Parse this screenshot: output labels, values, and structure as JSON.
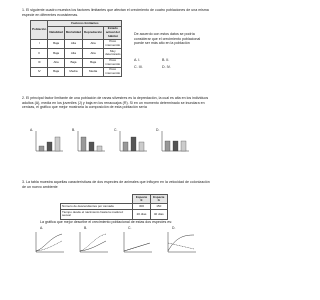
{
  "q1": {
    "text": "1. El siguiente cuadro muestra los factores limitantes que afectan el crecimiento de cuatro poblaciones de una misma especie en diferentes ecosistemas.",
    "table": {
      "group": "Factores limitantes",
      "header": [
        "Población",
        "Natalidad",
        "Mortalidad",
        "Depredación",
        "Estado actual del hábitat"
      ],
      "rows": [
        [
          "I",
          "Baja",
          "Alta",
          "Alta",
          "Poco intervenido"
        ],
        [
          "II",
          "Baja",
          "Alta",
          "Alta",
          "Muy deteriorado"
        ],
        [
          "III",
          "Alta",
          "Baja",
          "Baja",
          "Poco intervenido"
        ],
        [
          "IV",
          "Baja",
          "Media",
          "Media",
          "Poco intervenido"
        ]
      ]
    },
    "question": "De acuerdo con estos datos se podría considerar que el crecimiento poblacional puede ser más alto en la población",
    "options": [
      "A. I.",
      "B. II.",
      "C. III.",
      "D. IV."
    ]
  },
  "q2": {
    "text": "2. El principal factor limitante de una población de ranas silvestres es la depredación, la cual es alta en los individuos adultos (A), media en los juveniles (J) y baja en los renacuajos (R). Si en un momento determinado se inundara en cenizas, el gráfico que mejor mostraría la composición de esta población sería",
    "charts": [
      "A.",
      "B.",
      "C.",
      "D."
    ]
  },
  "q3": {
    "text": "3. La tabla muestra aquellas características de dos especies de animales que influyen en la velocidad de colonización de un nuevo ambiente",
    "table": {
      "header": [
        "Especie E",
        "Especie G"
      ],
      "rows": [
        [
          "Número de descendientes por camada",
          "300",
          "150"
        ],
        [
          "Tiempo desde el nacimiento hasta la madurez sexual",
          "20 días",
          "40 días"
        ]
      ]
    },
    "question": "La gráfica que mejor describe el crecimiento poblacional de estas dos especies es:",
    "graphs": [
      "A.",
      "B.",
      "C.",
      "D."
    ]
  }
}
